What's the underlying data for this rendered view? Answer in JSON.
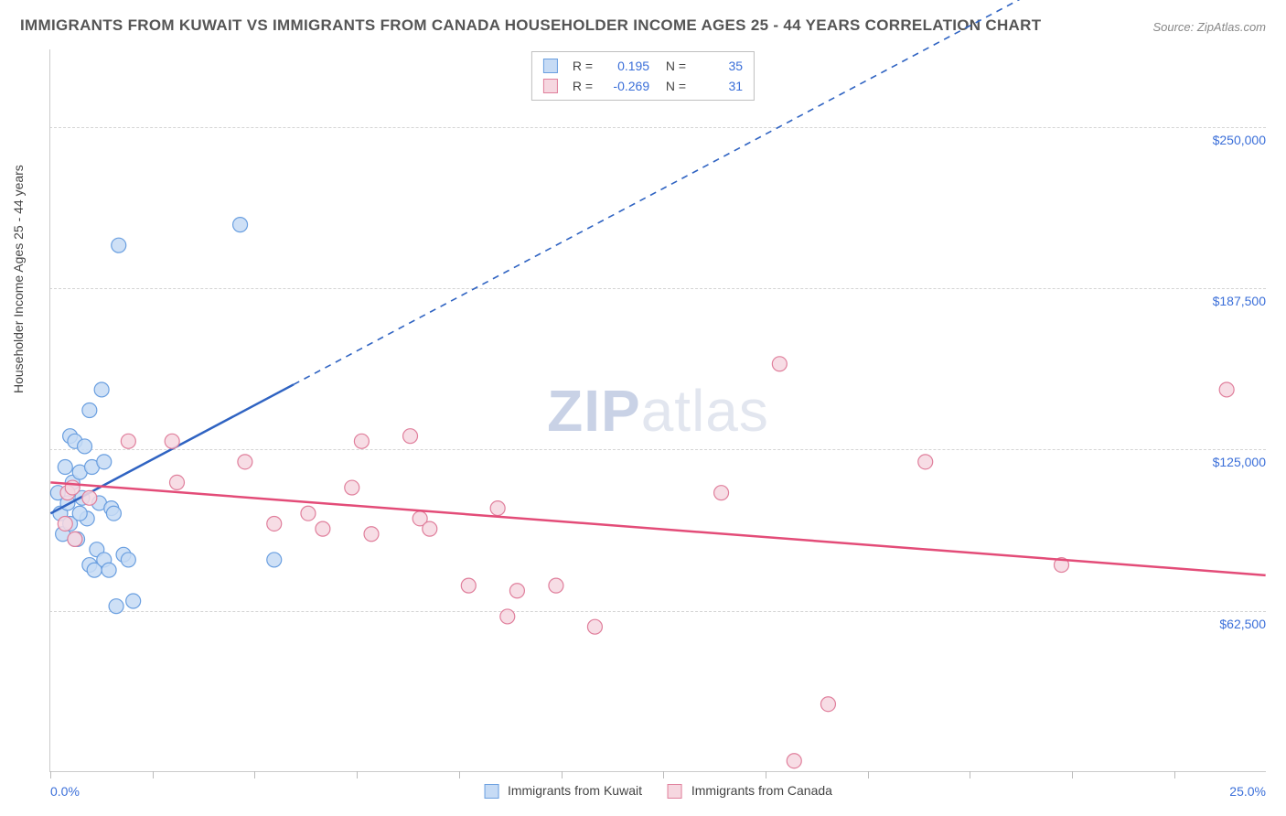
{
  "title": "IMMIGRANTS FROM KUWAIT VS IMMIGRANTS FROM CANADA HOUSEHOLDER INCOME AGES 25 - 44 YEARS CORRELATION CHART",
  "source": "Source: ZipAtlas.com",
  "watermark": {
    "bold": "ZIP",
    "rest": "atlas"
  },
  "chart": {
    "type": "scatter-with-trendlines",
    "background_color": "#ffffff",
    "grid_color": "#d5d5d5",
    "axis_color": "#cccccc",
    "text_color": "#444444",
    "value_color": "#3b6fd9",
    "ylabel": "Householder Income Ages 25 - 44 years",
    "xlim": [
      0,
      25
    ],
    "ylim": [
      0,
      280000
    ],
    "x_tick_positions": [
      0,
      2.1,
      4.2,
      6.3,
      8.4,
      10.5,
      12.6,
      14.7,
      16.8,
      18.9,
      21.0,
      23.1
    ],
    "x_left_label": "0.0%",
    "x_right_label": "25.0%",
    "y_gridlines": [
      62500,
      125000,
      187500,
      250000
    ],
    "y_tick_labels": [
      "$62,500",
      "$125,000",
      "$187,500",
      "$250,000"
    ],
    "series": [
      {
        "key": "kuwait",
        "label": "Immigrants from Kuwait",
        "marker_fill": "#c6dbf5",
        "marker_stroke": "#6a9fe0",
        "line_color": "#2f63c2",
        "R": "0.195",
        "N": "35",
        "marker_radius": 8,
        "trend": {
          "x1": 0,
          "y1": 100000,
          "x2": 5,
          "y2": 150000,
          "dash_to_x": 21,
          "dash_to_y": 310000
        },
        "points": [
          [
            0.15,
            108000
          ],
          [
            0.2,
            100000
          ],
          [
            0.25,
            92000
          ],
          [
            0.3,
            118000
          ],
          [
            0.35,
            104000
          ],
          [
            0.4,
            130000
          ],
          [
            0.4,
            96000
          ],
          [
            0.45,
            112000
          ],
          [
            0.5,
            128000
          ],
          [
            0.55,
            90000
          ],
          [
            0.6,
            116000
          ],
          [
            0.65,
            106000
          ],
          [
            0.7,
            126000
          ],
          [
            0.75,
            98000
          ],
          [
            0.8,
            80000
          ],
          [
            0.85,
            118000
          ],
          [
            0.9,
            78000
          ],
          [
            0.95,
            86000
          ],
          [
            1.0,
            104000
          ],
          [
            1.05,
            148000
          ],
          [
            1.1,
            82000
          ],
          [
            1.1,
            120000
          ],
          [
            1.2,
            78000
          ],
          [
            1.25,
            102000
          ],
          [
            1.3,
            100000
          ],
          [
            1.35,
            64000
          ],
          [
            1.5,
            84000
          ],
          [
            1.6,
            82000
          ],
          [
            1.7,
            66000
          ],
          [
            1.4,
            204000
          ],
          [
            0.8,
            140000
          ],
          [
            4.6,
            82000
          ],
          [
            3.9,
            212000
          ],
          [
            0.5,
            90000
          ],
          [
            0.6,
            100000
          ]
        ]
      },
      {
        "key": "canada",
        "label": "Immigrants from Canada",
        "marker_fill": "#f6d7e0",
        "marker_stroke": "#e07f9c",
        "line_color": "#e34c78",
        "R": "-0.269",
        "N": "31",
        "marker_radius": 8,
        "trend": {
          "x1": 0,
          "y1": 112000,
          "x2": 25,
          "y2": 76000
        },
        "points": [
          [
            0.3,
            96000
          ],
          [
            0.35,
            108000
          ],
          [
            0.45,
            110000
          ],
          [
            0.5,
            90000
          ],
          [
            0.8,
            106000
          ],
          [
            1.6,
            128000
          ],
          [
            2.5,
            128000
          ],
          [
            2.6,
            112000
          ],
          [
            4.0,
            120000
          ],
          [
            4.6,
            96000
          ],
          [
            5.3,
            100000
          ],
          [
            5.6,
            94000
          ],
          [
            6.2,
            110000
          ],
          [
            6.4,
            128000
          ],
          [
            6.6,
            92000
          ],
          [
            7.4,
            130000
          ],
          [
            7.6,
            98000
          ],
          [
            7.8,
            94000
          ],
          [
            8.6,
            72000
          ],
          [
            9.2,
            102000
          ],
          [
            9.4,
            60000
          ],
          [
            9.6,
            70000
          ],
          [
            10.4,
            72000
          ],
          [
            11.2,
            56000
          ],
          [
            13.8,
            108000
          ],
          [
            15.0,
            158000
          ],
          [
            15.3,
            4000
          ],
          [
            16.0,
            26000
          ],
          [
            18.0,
            120000
          ],
          [
            20.8,
            80000
          ],
          [
            24.2,
            148000
          ]
        ]
      }
    ],
    "legend_swatch_border": {
      "kuwait": "#6a9fe0",
      "canada": "#e07f9c"
    }
  }
}
